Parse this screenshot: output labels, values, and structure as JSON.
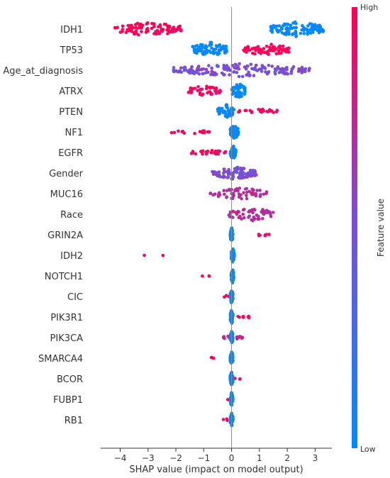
{
  "chart_data": {
    "type": "scatter",
    "subtype": "shap-beeswarm",
    "title": "",
    "xlabel": "SHAP value (impact on model output)",
    "ylabel": "",
    "xlim": [
      -4.7,
      3.6
    ],
    "xticks": [
      -4,
      -3,
      -2,
      -1,
      0,
      1,
      2,
      3
    ],
    "grid": false,
    "zero_line": true,
    "colorbar": {
      "label": "Feature value",
      "high_label": "High",
      "low_label": "Low",
      "low_color": "#008bfb",
      "high_color": "#ff0052"
    },
    "features": [
      {
        "name": "IDH1",
        "clusters": [
          {
            "range": [
              -4.2,
              -1.8
            ],
            "level": 1.0,
            "count": 95,
            "spread": 0.35
          },
          {
            "range": [
              1.4,
              3.3
            ],
            "level": 0.0,
            "count": 110,
            "spread": 0.38
          }
        ]
      },
      {
        "name": "TP53",
        "clusters": [
          {
            "range": [
              -1.4,
              -0.1
            ],
            "level": 0.0,
            "count": 75,
            "spread": 0.38
          },
          {
            "range": [
              0.4,
              2.1
            ],
            "level": 1.0,
            "count": 70,
            "spread": 0.3
          }
        ]
      },
      {
        "name": "Age_at_diagnosis",
        "clusters": [
          {
            "range": [
              -2.1,
              2.8
            ],
            "level": 0.5,
            "count": 170,
            "spread": 0.32
          }
        ]
      },
      {
        "name": "ATRX",
        "clusters": [
          {
            "range": [
              -1.6,
              -0.4
            ],
            "level": 0.95,
            "count": 40,
            "spread": 0.25
          },
          {
            "range": [
              0.0,
              0.5
            ],
            "level": 0.0,
            "count": 45,
            "spread": 0.38
          }
        ]
      },
      {
        "name": "PTEN",
        "clusters": [
          {
            "range": [
              -0.5,
              0.1
            ],
            "level": 0.0,
            "count": 50,
            "spread": 0.35
          },
          {
            "range": [
              0.1,
              1.8
            ],
            "level": 0.95,
            "count": 22,
            "spread": 0.12
          }
        ]
      },
      {
        "name": "NF1",
        "clusters": [
          {
            "range": [
              -2.2,
              -0.6
            ],
            "level": 0.95,
            "count": 16,
            "spread": 0.08
          },
          {
            "range": [
              -0.05,
              0.25
            ],
            "level": 0.0,
            "count": 55,
            "spread": 0.35
          }
        ]
      },
      {
        "name": "EGFR",
        "clusters": [
          {
            "range": [
              -1.5,
              -0.2
            ],
            "level": 0.95,
            "count": 30,
            "spread": 0.12
          },
          {
            "range": [
              -0.05,
              0.15
            ],
            "level": 0.0,
            "count": 55,
            "spread": 0.35
          }
        ]
      },
      {
        "name": "Gender",
        "clusters": [
          {
            "range": [
              -0.7,
              0.9
            ],
            "level": 0.5,
            "count": 100,
            "spread": 0.32
          }
        ]
      },
      {
        "name": "MUC16",
        "clusters": [
          {
            "range": [
              -0.8,
              1.3
            ],
            "level": 0.7,
            "count": 60,
            "spread": 0.3
          }
        ]
      },
      {
        "name": "Race",
        "clusters": [
          {
            "range": [
              -0.1,
              1.5
            ],
            "level": 0.7,
            "count": 55,
            "spread": 0.35
          }
        ]
      },
      {
        "name": "GRIN2A",
        "clusters": [
          {
            "range": [
              0.9,
              1.4
            ],
            "level": 0.95,
            "count": 7,
            "spread": 0.08
          },
          {
            "range": [
              -0.05,
              0.05
            ],
            "level": 0.0,
            "count": 50,
            "spread": 0.38
          }
        ]
      },
      {
        "name": "IDH2",
        "clusters": [
          {
            "range": [
              -3.2,
              -2.4
            ],
            "level": 0.95,
            "count": 2,
            "spread": 0.05
          },
          {
            "range": [
              -0.02,
              0.1
            ],
            "level": 0.0,
            "count": 45,
            "spread": 0.35
          }
        ]
      },
      {
        "name": "NOTCH1",
        "clusters": [
          {
            "range": [
              -1.1,
              -0.8
            ],
            "level": 0.95,
            "count": 3,
            "spread": 0.05
          },
          {
            "range": [
              -0.02,
              0.08
            ],
            "level": 0.0,
            "count": 45,
            "spread": 0.35
          }
        ]
      },
      {
        "name": "CIC",
        "clusters": [
          {
            "range": [
              -0.3,
              -0.1
            ],
            "level": 0.95,
            "count": 3,
            "spread": 0.05
          },
          {
            "range": [
              -0.05,
              0.05
            ],
            "level": 0.0,
            "count": 45,
            "spread": 0.35
          }
        ]
      },
      {
        "name": "PIK3R1",
        "clusters": [
          {
            "range": [
              0.2,
              0.8
            ],
            "level": 0.95,
            "count": 8,
            "spread": 0.08
          },
          {
            "range": [
              -0.05,
              0.05
            ],
            "level": 0.0,
            "count": 45,
            "spread": 0.35
          }
        ]
      },
      {
        "name": "PIK3CA",
        "clusters": [
          {
            "range": [
              -0.3,
              0.4
            ],
            "level": 0.8,
            "count": 15,
            "spread": 0.1
          },
          {
            "range": [
              -0.05,
              0.05
            ],
            "level": 0.0,
            "count": 45,
            "spread": 0.35
          }
        ]
      },
      {
        "name": "SMARCA4",
        "clusters": [
          {
            "range": [
              -0.8,
              -0.5
            ],
            "level": 0.95,
            "count": 4,
            "spread": 0.05
          },
          {
            "range": [
              -0.05,
              0.05
            ],
            "level": 0.0,
            "count": 45,
            "spread": 0.35
          }
        ]
      },
      {
        "name": "BCOR",
        "clusters": [
          {
            "range": [
              0.1,
              0.4
            ],
            "level": 0.95,
            "count": 3,
            "spread": 0.05
          },
          {
            "range": [
              -0.05,
              0.05
            ],
            "level": 0.0,
            "count": 45,
            "spread": 0.35
          }
        ]
      },
      {
        "name": "FUBP1",
        "clusters": [
          {
            "range": [
              -0.15,
              -0.05
            ],
            "level": 0.95,
            "count": 2,
            "spread": 0.05
          },
          {
            "range": [
              -0.05,
              0.05
            ],
            "level": 0.0,
            "count": 45,
            "spread": 0.35
          }
        ]
      },
      {
        "name": "RB1",
        "clusters": [
          {
            "range": [
              -0.3,
              -0.1
            ],
            "level": 0.95,
            "count": 3,
            "spread": 0.05
          },
          {
            "range": [
              -0.05,
              0.05
            ],
            "level": 0.0,
            "count": 45,
            "spread": 0.35
          }
        ]
      }
    ]
  }
}
